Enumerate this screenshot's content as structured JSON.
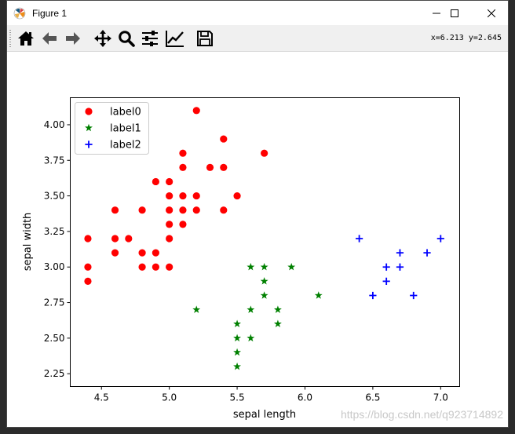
{
  "window": {
    "title": "Figure 1"
  },
  "toolbar": {
    "buttons": [
      {
        "name": "home-button",
        "icon": "home-icon"
      },
      {
        "name": "back-button",
        "icon": "arrow-left-icon"
      },
      {
        "name": "forward-button",
        "icon": "arrow-right-icon"
      },
      {
        "name": "pan-button",
        "icon": "move-icon"
      },
      {
        "name": "zoom-button",
        "icon": "magnifier-icon"
      },
      {
        "name": "subplots-button",
        "icon": "sliders-icon"
      },
      {
        "name": "edit-axis-button",
        "icon": "line-chart-icon"
      },
      {
        "name": "save-button",
        "icon": "floppy-disk-icon"
      }
    ],
    "coords": "x=6.213 y=2.645"
  },
  "watermark": "https://blog.csdn.net/q923714892",
  "chart_data": {
    "type": "scatter",
    "title": "",
    "xlabel": "sepal length",
    "ylabel": "sepal width",
    "xlim": [
      4.27,
      7.14
    ],
    "ylim": [
      2.16,
      4.19
    ],
    "xticks": [
      4.5,
      5.0,
      5.5,
      6.0,
      6.5,
      7.0
    ],
    "xtick_labels": [
      "4.5",
      "5.0",
      "5.5",
      "6.0",
      "6.5",
      "7.0"
    ],
    "yticks": [
      2.25,
      2.5,
      2.75,
      3.0,
      3.25,
      3.5,
      3.75,
      4.0
    ],
    "ytick_labels": [
      "2.25",
      "2.50",
      "2.75",
      "3.00",
      "3.25",
      "3.50",
      "3.75",
      "4.00"
    ],
    "legend_position": "top-left",
    "grid": false,
    "series": [
      {
        "name": "label0",
        "marker": "circle",
        "color": "#ff0000",
        "points": [
          [
            5.2,
            4.1
          ],
          [
            5.4,
            3.9
          ],
          [
            5.7,
            3.8
          ],
          [
            5.1,
            3.8
          ],
          [
            5.1,
            3.7
          ],
          [
            5.3,
            3.7
          ],
          [
            5.4,
            3.7
          ],
          [
            4.9,
            3.6
          ],
          [
            5.0,
            3.6
          ],
          [
            5.0,
            3.5
          ],
          [
            5.1,
            3.5
          ],
          [
            5.2,
            3.5
          ],
          [
            5.5,
            3.5
          ],
          [
            4.6,
            3.4
          ],
          [
            4.8,
            3.4
          ],
          [
            5.0,
            3.4
          ],
          [
            5.1,
            3.4
          ],
          [
            5.2,
            3.4
          ],
          [
            5.4,
            3.4
          ],
          [
            5.0,
            3.3
          ],
          [
            5.1,
            3.3
          ],
          [
            4.4,
            3.2
          ],
          [
            4.6,
            3.2
          ],
          [
            4.7,
            3.2
          ],
          [
            5.0,
            3.2
          ],
          [
            4.6,
            3.1
          ],
          [
            4.8,
            3.1
          ],
          [
            4.9,
            3.1
          ],
          [
            4.4,
            3.0
          ],
          [
            4.8,
            3.0
          ],
          [
            4.9,
            3.0
          ],
          [
            5.0,
            3.0
          ],
          [
            4.4,
            2.9
          ]
        ]
      },
      {
        "name": "label1",
        "marker": "star",
        "color": "#008000",
        "points": [
          [
            5.6,
            3.0
          ],
          [
            5.7,
            3.0
          ],
          [
            5.9,
            3.0
          ],
          [
            5.7,
            2.9
          ],
          [
            5.7,
            2.8
          ],
          [
            6.1,
            2.8
          ],
          [
            5.2,
            2.7
          ],
          [
            5.6,
            2.7
          ],
          [
            5.8,
            2.7
          ],
          [
            5.5,
            2.6
          ],
          [
            5.8,
            2.6
          ],
          [
            5.5,
            2.5
          ],
          [
            5.6,
            2.5
          ],
          [
            5.5,
            2.4
          ],
          [
            5.5,
            2.3
          ]
        ]
      },
      {
        "name": "label2",
        "marker": "plus",
        "color": "#0000ff",
        "points": [
          [
            6.4,
            3.2
          ],
          [
            7.0,
            3.2
          ],
          [
            6.7,
            3.1
          ],
          [
            6.9,
            3.1
          ],
          [
            6.6,
            3.0
          ],
          [
            6.7,
            3.0
          ],
          [
            6.6,
            2.9
          ],
          [
            6.5,
            2.8
          ],
          [
            6.8,
            2.8
          ]
        ]
      }
    ]
  }
}
